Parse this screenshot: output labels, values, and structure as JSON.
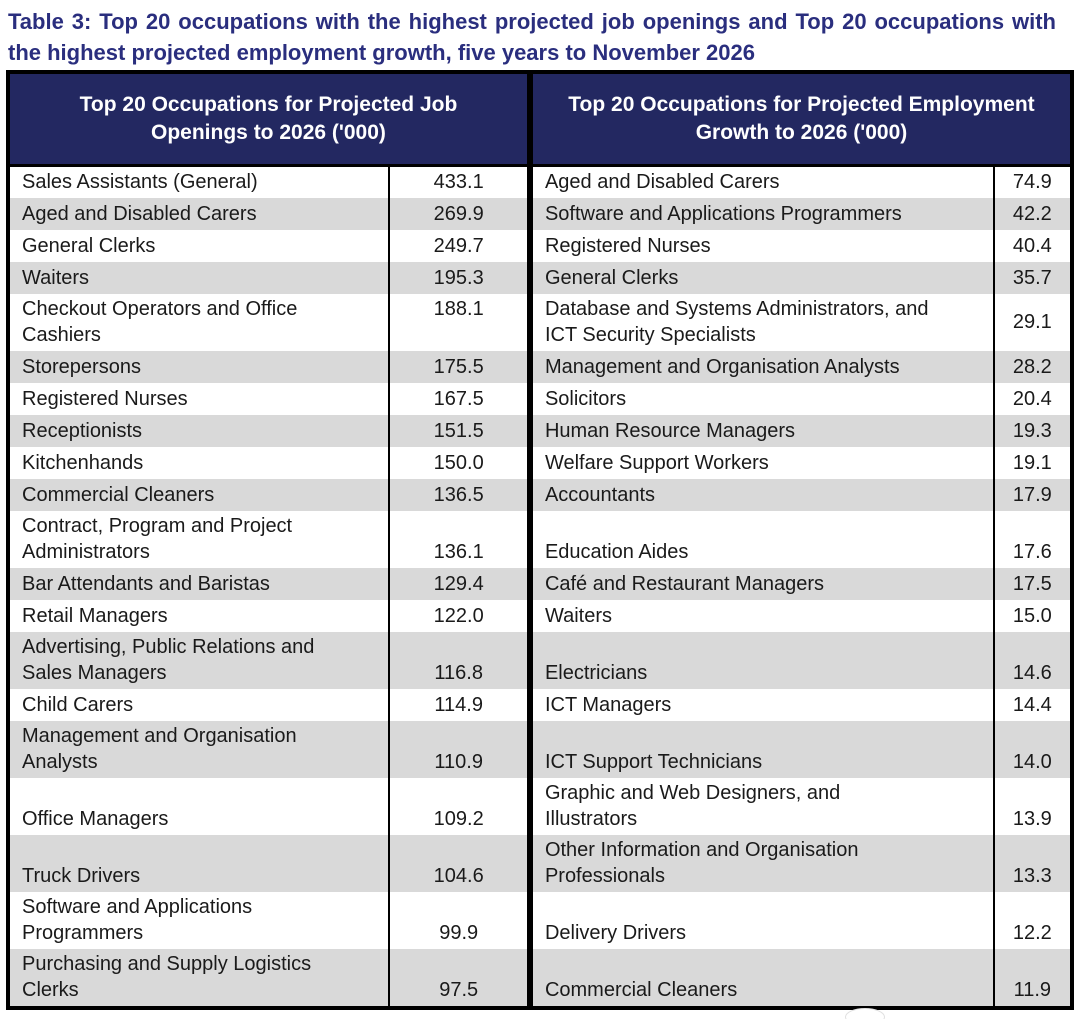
{
  "title": "Table 3: Top 20 occupations with the highest projected job openings and Top 20 occupations with the highest projected employment growth, five years to November 2026",
  "table": {
    "left_header": "Top 20 Occupations for Projected Job Openings to 2026 ('000)",
    "right_header": "Top 20 Occupations for Projected Employment Growth to 2026 ('000)",
    "rows": [
      {
        "left_occupation": "Sales Assistants (General)",
        "left_value": "433.1",
        "right_occupation": "Aged and Disabled Carers",
        "right_value": "74.9"
      },
      {
        "left_occupation": "Aged and Disabled Carers",
        "left_value": "269.9",
        "right_occupation": "Software and Applications Programmers",
        "right_value": "42.2"
      },
      {
        "left_occupation": "General Clerks",
        "left_value": "249.7",
        "right_occupation": "Registered Nurses",
        "right_value": "40.4"
      },
      {
        "left_occupation": "Waiters",
        "left_value": "195.3",
        "right_occupation": "General Clerks",
        "right_value": "35.7"
      },
      {
        "left_occupation": "Checkout Operators and Office Cashiers",
        "left_value": "188.1",
        "right_occupation": "Database and Systems Administrators, and ICT Security Specialists",
        "right_value": "29.1"
      },
      {
        "left_occupation": "Storepersons",
        "left_value": "175.5",
        "right_occupation": "Management and Organisation Analysts",
        "right_value": "28.2"
      },
      {
        "left_occupation": "Registered Nurses",
        "left_value": "167.5",
        "right_occupation": "Solicitors",
        "right_value": "20.4"
      },
      {
        "left_occupation": "Receptionists",
        "left_value": "151.5",
        "right_occupation": "Human Resource Managers",
        "right_value": "19.3"
      },
      {
        "left_occupation": "Kitchenhands",
        "left_value": "150.0",
        "right_occupation": "Welfare Support Workers",
        "right_value": "19.1"
      },
      {
        "left_occupation": "Commercial Cleaners",
        "left_value": "136.5",
        "right_occupation": "Accountants",
        "right_value": "17.9"
      },
      {
        "left_occupation": "Contract, Program and Project Administrators",
        "left_value": "136.1",
        "right_occupation": "Education Aides",
        "right_value": "17.6"
      },
      {
        "left_occupation": "Bar Attendants and Baristas",
        "left_value": "129.4",
        "right_occupation": "Café and Restaurant Managers",
        "right_value": "17.5"
      },
      {
        "left_occupation": "Retail Managers",
        "left_value": "122.0",
        "right_occupation": "Waiters",
        "right_value": "15.0"
      },
      {
        "left_occupation": "Advertising, Public Relations and Sales Managers",
        "left_value": "116.8",
        "right_occupation": "Electricians",
        "right_value": "14.6"
      },
      {
        "left_occupation": "Child Carers",
        "left_value": "114.9",
        "right_occupation": "ICT Managers",
        "right_value": "14.4"
      },
      {
        "left_occupation": "Management and Organisation Analysts",
        "left_value": "110.9",
        "right_occupation": "ICT Support Technicians",
        "right_value": "14.0"
      },
      {
        "left_occupation": "Office Managers",
        "left_value": "109.2",
        "right_occupation": "Graphic and Web Designers, and Illustrators",
        "right_value": "13.9"
      },
      {
        "left_occupation": "Truck Drivers",
        "left_value": "104.6",
        "right_occupation": "Other Information and Organisation Professionals",
        "right_value": "13.3"
      },
      {
        "left_occupation": "Software and Applications Programmers",
        "left_value": "99.9",
        "right_occupation": "Delivery Drivers",
        "right_value": "12.2"
      },
      {
        "left_occupation": "Purchasing and Supply Logistics Clerks",
        "left_value": "97.5",
        "right_occupation": "Commercial Cleaners",
        "right_value": "11.9"
      }
    ]
  },
  "colors": {
    "title_text": "#2a2e7e",
    "header_bg": "#232861",
    "header_text": "#ffffff",
    "row_stripe": "#d9d9d9",
    "body_text": "#1a1a1a",
    "border": "#000000"
  }
}
